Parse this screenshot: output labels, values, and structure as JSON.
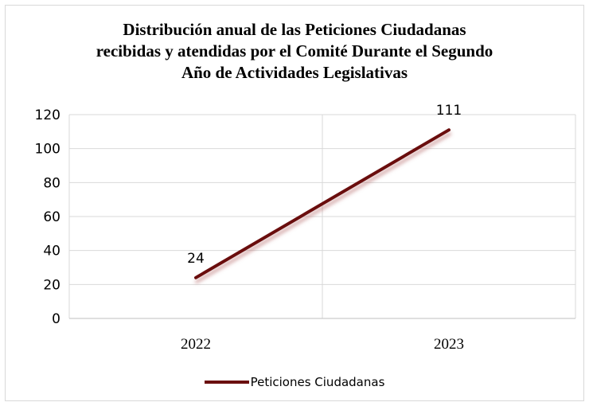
{
  "chart_data": {
    "type": "line",
    "title_lines": [
      "Distribución anual de las Peticiones Ciudadanas",
      "recibidas y atendidas por el Comité Durante el Segundo",
      "Año de Actividades Legislativas"
    ],
    "categories": [
      "2022",
      "2023"
    ],
    "series": [
      {
        "name": "Peticiones Ciudadanas",
        "values": [
          24,
          111
        ],
        "color": "#6b0f0f"
      }
    ],
    "ylim": [
      0,
      120
    ],
    "yticks": [
      0,
      20,
      40,
      60,
      80,
      100,
      120
    ],
    "grid": true,
    "legend_position": "bottom",
    "data_labels": [
      "24",
      "111"
    ]
  }
}
